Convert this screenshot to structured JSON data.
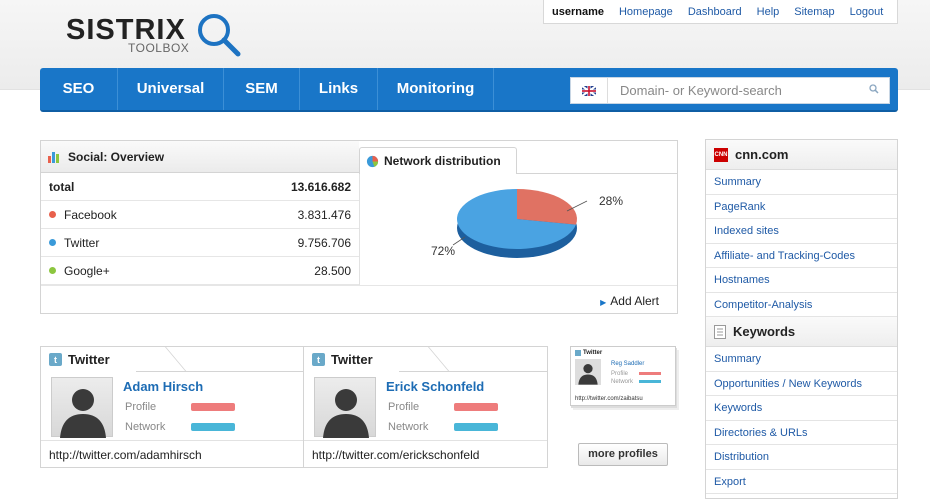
{
  "logo": {
    "word": "SISTRIX",
    "sub": "TOOLBOX"
  },
  "topnav": {
    "user": "username",
    "links": [
      "Homepage",
      "Dashboard",
      "Help",
      "Sitemap",
      "Logout"
    ]
  },
  "mainnav": {
    "items": [
      "SEO",
      "Universal",
      "SEM",
      "Links",
      "Monitoring"
    ]
  },
  "search": {
    "placeholder": "Domain- or Keyword-search"
  },
  "social": {
    "title": "Social: Overview",
    "rows": [
      {
        "name": "total",
        "value": "13.616.682"
      },
      {
        "name": "Facebook",
        "value": "3.831.476",
        "color": "#e8604c"
      },
      {
        "name": "Twitter",
        "value": "9.756.706",
        "color": "#3a9ad9"
      },
      {
        "name": "Google+",
        "value": "28.500",
        "color": "#8cc63f"
      }
    ],
    "add_alert": "Add Alert"
  },
  "network": {
    "title": "Network distribution",
    "pct_a": "28%",
    "pct_b": "72%",
    "share_a": 28,
    "share_b": 72
  },
  "twitter_cards": [
    {
      "head": "Twitter",
      "name": "Adam Hirsch",
      "profile": "Profile",
      "network": "Network",
      "url": "http://twitter.com/adamhirsch"
    },
    {
      "head": "Twitter",
      "name": "Erick Schonfeld",
      "profile": "Profile",
      "network": "Network",
      "url": "http://twitter.com/erickschonfeld"
    }
  ],
  "mini_card": {
    "head": "Twitter",
    "name": "Reg Saddler",
    "profile": "Profile",
    "network": "Network",
    "url": "http://twitter.com/zaibatsu"
  },
  "more_profiles": "more profiles",
  "sidebar": {
    "domain": "cnn.com",
    "cnn_logo": "CNN",
    "domain_links": [
      "Summary",
      "PageRank",
      "Indexed sites",
      "Affiliate- and Tracking-Codes",
      "Hostnames",
      "Competitor-Analysis"
    ],
    "keywords_title": "Keywords",
    "keyword_links": [
      "Summary",
      "Opportunities / New Keywords",
      "Keywords",
      "Directories & URLs",
      "Distribution",
      "Export"
    ]
  }
}
